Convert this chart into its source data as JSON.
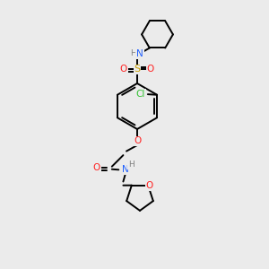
{
  "background_color": "#ebebeb",
  "bond_color": "#000000",
  "atom_colors": {
    "N": "#2060ff",
    "O": "#ff2020",
    "S": "#c8a000",
    "Cl": "#30c030",
    "H": "#808080",
    "C": "#000000"
  },
  "lw": 1.4,
  "fs": 7.5
}
